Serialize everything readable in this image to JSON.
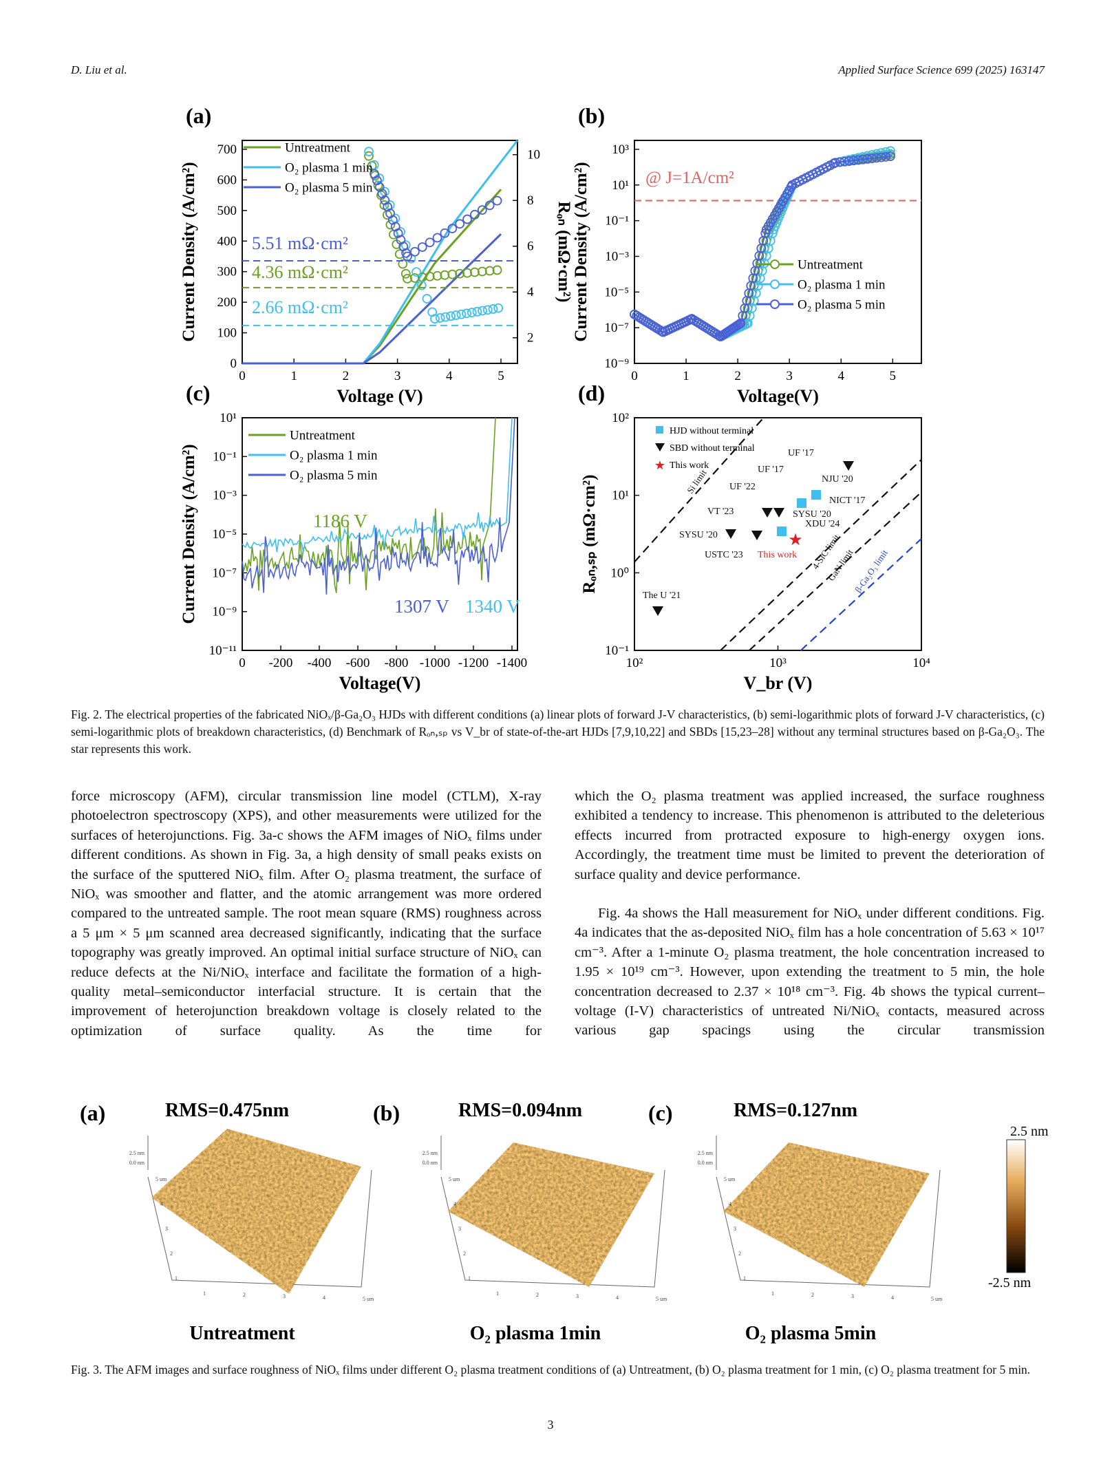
{
  "header": {
    "authors": "D. Liu et al.",
    "journal": "Applied Surface Science 699 (2025) 163147"
  },
  "figure2": {
    "panels": [
      {
        "label": "(a)",
        "xlabel": "Voltage (V)",
        "ylabel": "Current Density (A/cm²)",
        "y2label": "Rₒₙ (mΩ·cm²)",
        "xticks": [
          "0",
          "1",
          "2",
          "3",
          "4",
          "5"
        ],
        "yticks": [
          "0",
          "100",
          "200",
          "300",
          "400",
          "500",
          "600",
          "700"
        ],
        "y2ticks": [
          "2",
          "4",
          "6",
          "8",
          "10"
        ],
        "legend": [
          "Untreatment",
          "O₂ plasma 1 min",
          "O₂ plasma 5 min"
        ],
        "annotations": [
          "5.51 mΩ·cm²",
          "4.36 mΩ·cm²",
          "2.66 mΩ·cm²"
        ]
      },
      {
        "label": "(b)",
        "xlabel": "Voltage(V)",
        "ylabel": "Current Density (A/cm²)",
        "xticks": [
          "0",
          "1",
          "2",
          "3",
          "4",
          "5"
        ],
        "yticks": [
          "10⁻⁹",
          "10⁻⁷",
          "10⁻⁵",
          "10⁻³",
          "10⁻¹",
          "10¹",
          "10³"
        ],
        "legend": [
          "Untreatment",
          "O₂ plasma 1 min",
          "O₂ plasma 5 min"
        ],
        "annotations": [
          "@ J=1A/cm²"
        ]
      },
      {
        "label": "(c)",
        "xlabel": "Voltage(V)",
        "ylabel": "Current Density (A/cm²)",
        "xticks": [
          "0",
          "-200",
          "-400",
          "-600",
          "-800",
          "-1000",
          "-1200",
          "-1400"
        ],
        "yticks": [
          "10⁻¹¹",
          "10⁻⁹",
          "10⁻⁷",
          "10⁻⁵",
          "10⁻³",
          "10⁻¹",
          "10¹"
        ],
        "legend": [
          "Untreatment",
          "O₂ plasma 1 min",
          "O₂ plasma 5 min"
        ],
        "annotations": [
          "1186 V",
          "1307 V",
          "1340 V"
        ]
      },
      {
        "label": "(d)",
        "xlabel": "V_br (V)",
        "ylabel": "Rₒₙ,ₛₚ (mΩ·cm²)",
        "xticks": [
          "10²",
          "10³",
          "10⁴"
        ],
        "yticks": [
          "10⁻¹",
          "10⁰",
          "10¹",
          "10²"
        ],
        "legend": [
          "HJD without terminal",
          "SBD without terminal",
          "This work"
        ],
        "annotations": [
          "UF '17",
          "UF '17",
          "NJU '20",
          "UF '22",
          "NICT '17",
          "VT '23",
          "SYSU '20",
          "XDU '24",
          "SYSU '20",
          "USTC '23",
          "This work",
          "The U '21",
          "Si limit",
          "4-SiC limit",
          "GaN limit",
          "β-Ga₂O₃ limit"
        ]
      }
    ],
    "caption": "Fig. 2. The electrical properties of the fabricated NiOₓ/β-Ga₂O₃ HJDs with different conditions (a) linear plots of forward J-V characteristics, (b) semi-logarithmic plots of forward J-V characteristics, (c) semi-logarithmic plots of breakdown characteristics, (d) Benchmark of Rₒₙ,ₛₚ vs V_br of state-of-the-art HJDs [7,9,10,22] and SBDs [15,23–28] without any terminal structures based on β-Ga₂O₃. The star represents this work."
  },
  "body": {
    "left": "force microscopy (AFM), circular transmission line model (CTLM), X-ray photoelectron spectroscopy (XPS), and other measurements were utilized for the surfaces of heterojunctions. Fig. 3a-c shows the AFM images of NiOₓ films under different conditions. As shown in Fig. 3a, a high density of small peaks exists on the surface of the sputtered NiOₓ film. After O₂ plasma treatment, the surface of NiOₓ was smoother and flatter, and the atomic arrangement was more ordered compared to the untreated sample. The root mean square (RMS) roughness across a 5 μm × 5 μm scanned area decreased significantly, indicating that the surface topography was greatly improved. An optimal initial surface structure of NiOₓ can reduce defects at the Ni/NiOₓ interface and facilitate the formation of a high-quality metal–semiconductor interfacial structure. It is certain that the improvement of heterojunction breakdown voltage is closely related to the optimization of surface quality. As the time for",
    "right": [
      "which the O₂ plasma treatment was applied increased, the surface roughness exhibited a tendency to increase. This phenomenon is attributed to the deleterious effects incurred from protracted exposure to high-energy oxygen ions. Accordingly, the treatment time must be limited to prevent the deterioration of surface quality and device performance.",
      "Fig. 4a shows the Hall measurement for NiOₓ under different conditions. Fig. 4a indicates that the as-deposited NiOₓ film has a hole concentration of 5.63 × 10¹⁷ cm⁻³. After a 1-minute O₂ plasma treatment, the hole concentration increased to 1.95 × 10¹⁹ cm⁻³. However, upon extending the treatment to 5 min, the hole concentration decreased to 2.37 × 10¹⁸ cm⁻³. Fig. 4b shows the typical current–voltage (I-V) characteristics of untreated Ni/NiOₓ contacts, measured across various gap spacings using the circular transmission"
    ]
  },
  "figure3": {
    "panels": [
      {
        "label": "(a)",
        "rms": "RMS=0.475nm",
        "name": "Untreatment"
      },
      {
        "label": "(b)",
        "rms": "RMS=0.094nm",
        "name": "O₂ plasma 1min"
      },
      {
        "label": "(c)",
        "rms": "RMS=0.127nm",
        "name": "O₂ plasma 5min"
      }
    ],
    "z_ticks": [
      "2.5 nm",
      "0.0 nm"
    ],
    "y_ticks": [
      "5 um",
      "4",
      "3",
      "2",
      "1"
    ],
    "x_ticks": [
      "1",
      "2",
      "3",
      "4",
      "5 um"
    ],
    "colorbar": [
      "2.5 nm",
      "-2.5 nm"
    ],
    "caption": "Fig. 3. The AFM images and surface roughness of NiOₓ films under different O₂ plasma treatment conditions of (a) Untreatment, (b) O₂ plasma treatment for 1 min, (c) O₂ plasma treatment for 5 min."
  },
  "page_number": "3"
}
